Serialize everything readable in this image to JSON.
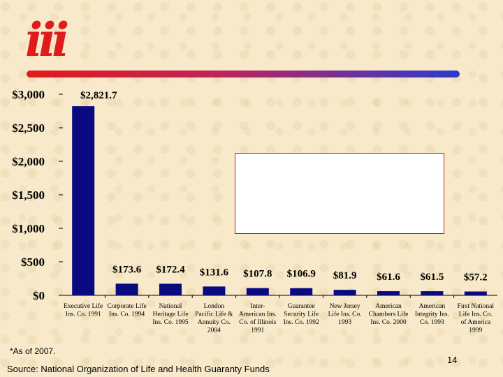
{
  "logo": {
    "text": "iii",
    "color": "#e01b1b"
  },
  "title_rule_colors": [
    "#e01b1b",
    "#2b3bd0"
  ],
  "chart_data": {
    "type": "bar",
    "ylim": [
      0,
      3000
    ],
    "yticks": [
      0,
      500,
      1000,
      1500,
      2000,
      2500,
      3000
    ],
    "ytick_labels": [
      "$0",
      "$500",
      "$1,000",
      "$1,500",
      "$2,000",
      "$2,500",
      "$3,000"
    ],
    "bar_color": "#0a0a80",
    "categories": [
      [
        "Executive Life",
        "Ins. Co. 1991"
      ],
      [
        "Corporate Life",
        "Ins. Co. 1994"
      ],
      [
        "National",
        "Heritage Life",
        "Ins. Co. 1995"
      ],
      [
        "London",
        "Pacific Life &",
        "Annuity Co.",
        "2004"
      ],
      [
        "Inter-",
        "American Ins.",
        "Co. of Illinois",
        "1991"
      ],
      [
        "Guarantee",
        "Security Life",
        "Ins. Co. 1992"
      ],
      [
        "New Jersey",
        "Life Ins. Co.",
        "1993"
      ],
      [
        "American",
        "Chambers Life",
        "Ins. Co. 2000"
      ],
      [
        "American",
        "Integrity Ins.",
        "Co. 1993"
      ],
      [
        "First National",
        "Life Ins. Co.",
        "of America",
        "1999"
      ]
    ],
    "values": [
      2821.7,
      173.6,
      172.4,
      131.6,
      107.8,
      106.9,
      81.9,
      61.6,
      61.5,
      57.2
    ],
    "value_labels": [
      "$2,821.7",
      "$173.6",
      "$172.4",
      "$131.6",
      "$107.8",
      "$106.9",
      "$81.9",
      "$61.6",
      "$61.5",
      "$57.2"
    ]
  },
  "footnote": "*As of 2007.",
  "source": "Source: National Organization of Life and Health Guaranty Funds",
  "page_number": "14"
}
